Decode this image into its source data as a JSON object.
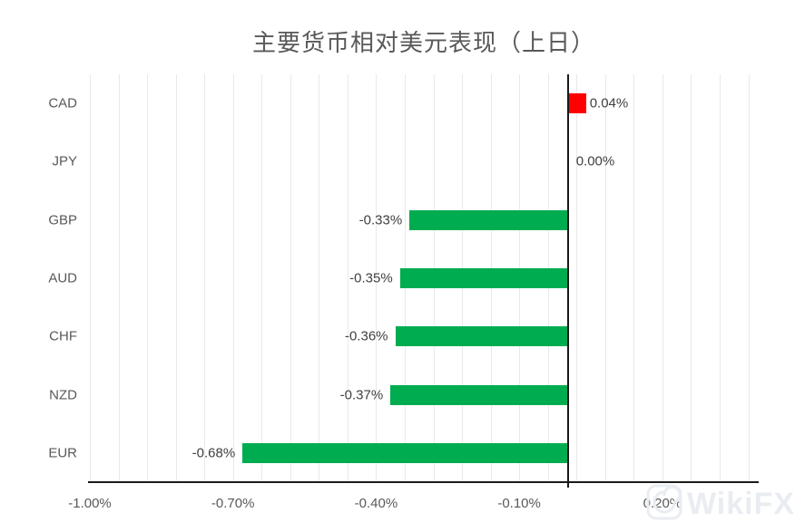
{
  "chart_data": {
    "type": "bar",
    "orientation": "horizontal",
    "title": "主要货币相对美元表现（上日）",
    "categories": [
      "CAD",
      "JPY",
      "GBP",
      "AUD",
      "CHF",
      "NZD",
      "EUR"
    ],
    "values": [
      0.04,
      0.0,
      -0.33,
      -0.35,
      -0.36,
      -0.37,
      -0.68
    ],
    "value_labels": [
      "0.04%",
      "0.00%",
      "-0.33%",
      "-0.35%",
      "-0.36%",
      "-0.37%",
      "-0.68%"
    ],
    "xlabel": "",
    "ylabel": "",
    "xlim": [
      -1.0,
      0.4
    ],
    "x_ticks": [
      -1.0,
      -0.7,
      -0.4,
      -0.1,
      0.2
    ],
    "x_tick_labels": [
      "-1.00%",
      "-0.70%",
      "-0.40%",
      "-0.10%",
      "0.20%"
    ],
    "minor_grid_step": 0.06,
    "grid": true,
    "legend": false,
    "positive_color": "#fe0000",
    "negative_color": "#00ac50",
    "axis_color": "#1a1a1a",
    "grid_color": "#e9e9e9",
    "title_color": "#595959",
    "label_color": "#404040"
  },
  "watermark": {
    "text": "WikiFX",
    "logo": "wikifx-spiral-logo",
    "color": "#e9ecf1"
  }
}
